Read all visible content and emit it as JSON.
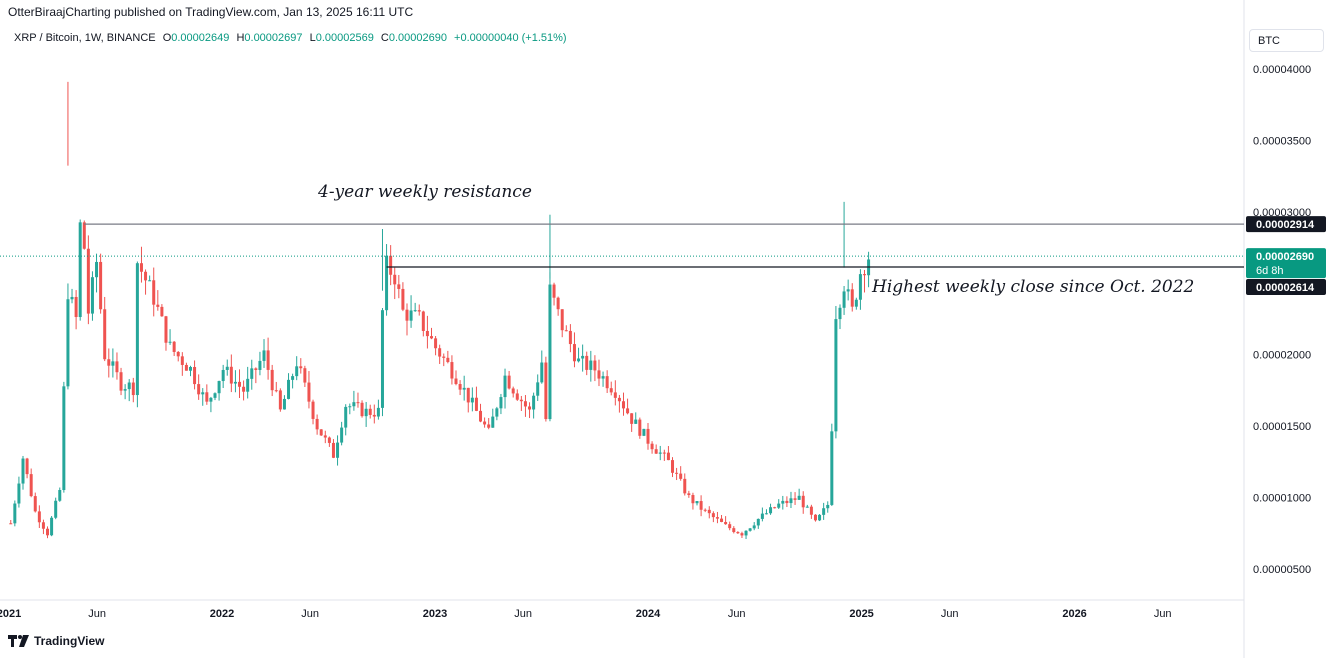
{
  "header": {
    "published_line": "OtterBiraajCharting published on TradingView.com, Jan 13, 2025 16:11 UTC"
  },
  "legend": {
    "symbol": "XRP / Bitcoin, 1W, BINANCE",
    "open_label": "O",
    "open_value": "0.00002649",
    "high_label": "H",
    "high_value": "0.00002697",
    "low_label": "L",
    "low_value": "0.00002569",
    "close_label": "C",
    "close_value": "0.00002690",
    "change_value": "+0.00000040 (+1.51%)"
  },
  "currency_button": "BTC",
  "footer": {
    "brand": "TradingView"
  },
  "colors": {
    "up": "#089981",
    "down": "#f23645",
    "up_candle": "#26a69a",
    "down_candle": "#ef5350"
  },
  "chart_data": {
    "type": "candlestick",
    "yaxis": {
      "ylim": [
        3.8e-06,
        4.2e-06
      ],
      "ticks": [
        "0.00000500",
        "0.00001000",
        "0.00001500",
        "0.00002000",
        "0.00002500",
        "0.00003000",
        "0.00003500",
        "0.00004000"
      ]
    },
    "xaxis": {
      "tick_labels": [
        "2021",
        "Jun",
        "2022",
        "Jun",
        "2023",
        "Jun",
        "2024",
        "Jun",
        "2025",
        "Jun",
        "2026",
        "Jun"
      ]
    },
    "price_labels": [
      {
        "id": "resistance",
        "text": "0.00002914"
      },
      {
        "id": "last",
        "text": "0.00002690",
        "sub": "6d 8h"
      },
      {
        "id": "close",
        "text": "0.00002614"
      }
    ],
    "annotations": [
      {
        "id": "resistance-text",
        "text": "4-year weekly resistance"
      },
      {
        "id": "close-text",
        "text": "Highest weekly close since Oct. 2022"
      }
    ],
    "hlines": [
      {
        "id": "resistance-line",
        "y": 2.914e-05,
        "x_start": "2021-05-10"
      },
      {
        "id": "close-line",
        "y": 2.614e-05,
        "x_start": "2022-10-10"
      }
    ],
    "close_anchor_points": [
      [
        "2021-01-04",
        8.2e-06
      ],
      [
        "2021-01-25",
        1.28e-05
      ],
      [
        "2021-02-15",
        9e-06
      ],
      [
        "2021-03-08",
        7.5e-06
      ],
      [
        "2021-03-29",
        1.05e-05
      ],
      [
        "2021-04-12",
        2.45e-05
      ],
      [
        "2021-04-26",
        2.25e-05
      ],
      [
        "2021-05-03",
        2.9e-05
      ],
      [
        "2021-05-10",
        2.75e-05
      ],
      [
        "2021-05-17",
        2.3e-05
      ],
      [
        "2021-05-31",
        2.65e-05
      ],
      [
        "2021-06-14",
        2e-05
      ],
      [
        "2021-07-12",
        1.8e-05
      ],
      [
        "2021-08-02",
        1.77e-05
      ],
      [
        "2021-08-09",
        2.65e-05
      ],
      [
        "2021-09-06",
        2.4e-05
      ],
      [
        "2021-10-04",
        2.05e-05
      ],
      [
        "2021-11-08",
        1.9e-05
      ],
      [
        "2021-12-06",
        1.65e-05
      ],
      [
        "2022-01-03",
        1.9e-05
      ],
      [
        "2022-02-07",
        1.75e-05
      ],
      [
        "2022-03-14",
        2e-05
      ],
      [
        "2022-04-11",
        1.6e-05
      ],
      [
        "2022-05-09",
        1.95e-05
      ],
      [
        "2022-06-13",
        1.5e-05
      ],
      [
        "2022-07-11",
        1.3e-05
      ],
      [
        "2022-08-01",
        1.65e-05
      ],
      [
        "2022-09-05",
        1.6e-05
      ],
      [
        "2022-09-26",
        1.6e-05
      ],
      [
        "2022-10-03",
        2.3e-05
      ],
      [
        "2022-10-10",
        2.62e-05
      ],
      [
        "2022-10-24",
        2.55e-05
      ],
      [
        "2022-11-07",
        2.3e-05
      ],
      [
        "2022-12-05",
        2.25e-05
      ],
      [
        "2023-01-02",
        2.05e-05
      ],
      [
        "2023-02-06",
        1.85e-05
      ],
      [
        "2023-03-06",
        1.65e-05
      ],
      [
        "2023-04-03",
        1.45e-05
      ],
      [
        "2023-05-01",
        1.85e-05
      ],
      [
        "2023-06-12",
        1.6e-05
      ],
      [
        "2023-07-03",
        1.95e-05
      ],
      [
        "2023-07-10",
        1.55e-05
      ],
      [
        "2023-07-17",
        2.45e-05
      ],
      [
        "2023-08-07",
        2.2e-05
      ],
      [
        "2023-09-04",
        1.95e-05
      ],
      [
        "2023-10-02",
        1.9e-05
      ],
      [
        "2023-11-06",
        1.75e-05
      ],
      [
        "2023-12-04",
        1.55e-05
      ],
      [
        "2024-01-01",
        1.4e-05
      ],
      [
        "2024-02-05",
        1.25e-05
      ],
      [
        "2024-03-11",
        1e-05
      ],
      [
        "2024-04-08",
        9e-06
      ],
      [
        "2024-05-13",
        8e-06
      ],
      [
        "2024-06-10",
        7.5e-06
      ],
      [
        "2024-07-08",
        8.5e-06
      ],
      [
        "2024-08-12",
        9.5e-06
      ],
      [
        "2024-09-16",
        1e-05
      ],
      [
        "2024-10-14",
        8.2e-06
      ],
      [
        "2024-11-04",
        9.5e-06
      ],
      [
        "2024-11-11",
        1.5e-05
      ],
      [
        "2024-11-18",
        2.3e-05
      ],
      [
        "2024-12-02",
        2.5e-05
      ],
      [
        "2024-12-16",
        2.3e-05
      ],
      [
        "2024-12-30",
        2.58e-05
      ],
      [
        "2025-01-13",
        2.69e-05
      ]
    ]
  }
}
